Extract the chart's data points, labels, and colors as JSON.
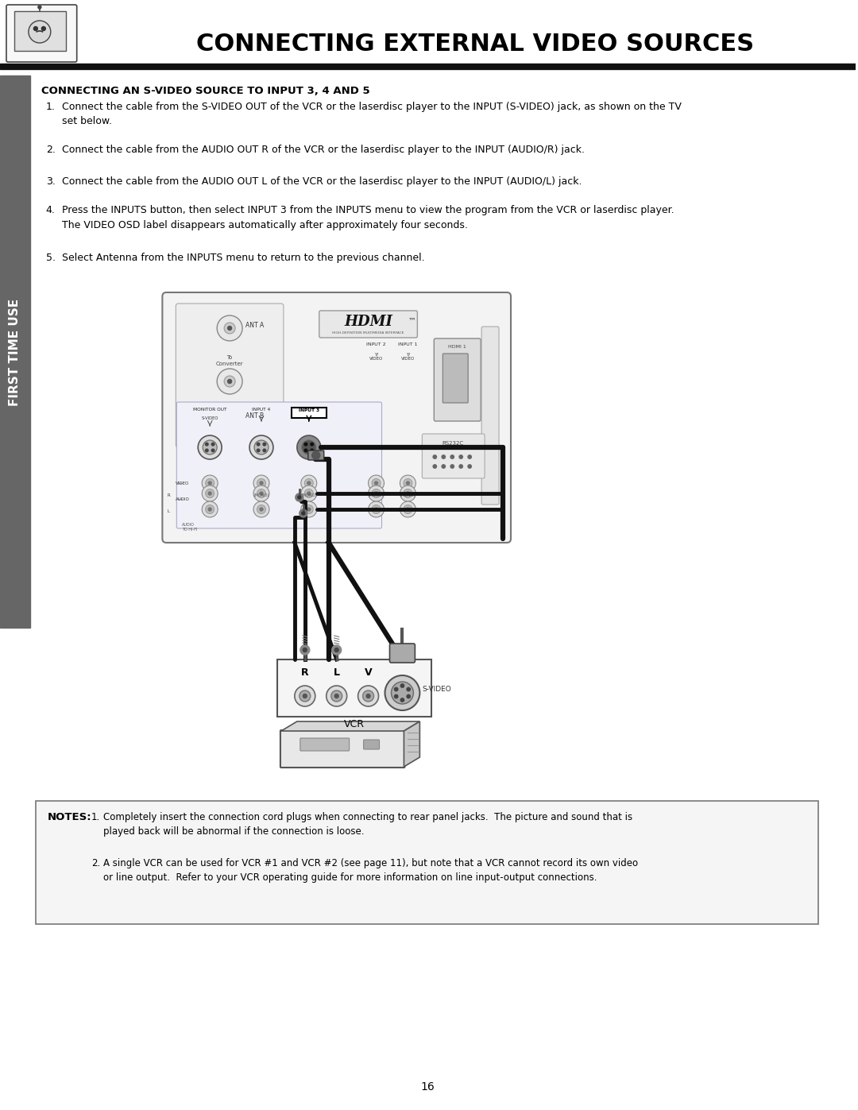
{
  "title": "CONNECTING EXTERNAL VIDEO SOURCES",
  "page_number": "16",
  "sidebar_text": "FIRST TIME USE",
  "section_title": "CONNECTING AN S-VIDEO SOURCE TO INPUT 3, 4 AND 5",
  "instructions": [
    "Connect the cable from the S-VIDEO OUT of the VCR or the laserdisc player to the INPUT (S-VIDEO) jack, as shown on the TV\nset below.",
    "Connect the cable from the AUDIO OUT R of the VCR or the laserdisc player to the INPUT (AUDIO/R) jack.",
    "Connect the cable from the AUDIO OUT L of the VCR or the laserdisc player to the INPUT (AUDIO/L) jack.",
    "Press the INPUTS button, then select INPUT 3 from the INPUTS menu to view the program from the VCR or laserdisc player.\nThe VIDEO OSD label disappears automatically after approximately four seconds.",
    "Select Antenna from the INPUTS menu to return to the previous channel."
  ],
  "notes_title": "NOTES:",
  "notes": [
    "Completely insert the connection cord plugs when connecting to rear panel jacks.  The picture and sound that is\nplayed back will be abnormal if the connection is loose.",
    "A single VCR can be used for VCR #1 and VCR #2 (see page 11), but note that a VCR cannot record its own video\nor line output.  Refer to your VCR operating guide for more information on line input-output connections."
  ],
  "bg_color": "#ffffff",
  "text_color": "#000000",
  "sidebar_color": "#666666",
  "note_box_bg": "#f0f0f0"
}
